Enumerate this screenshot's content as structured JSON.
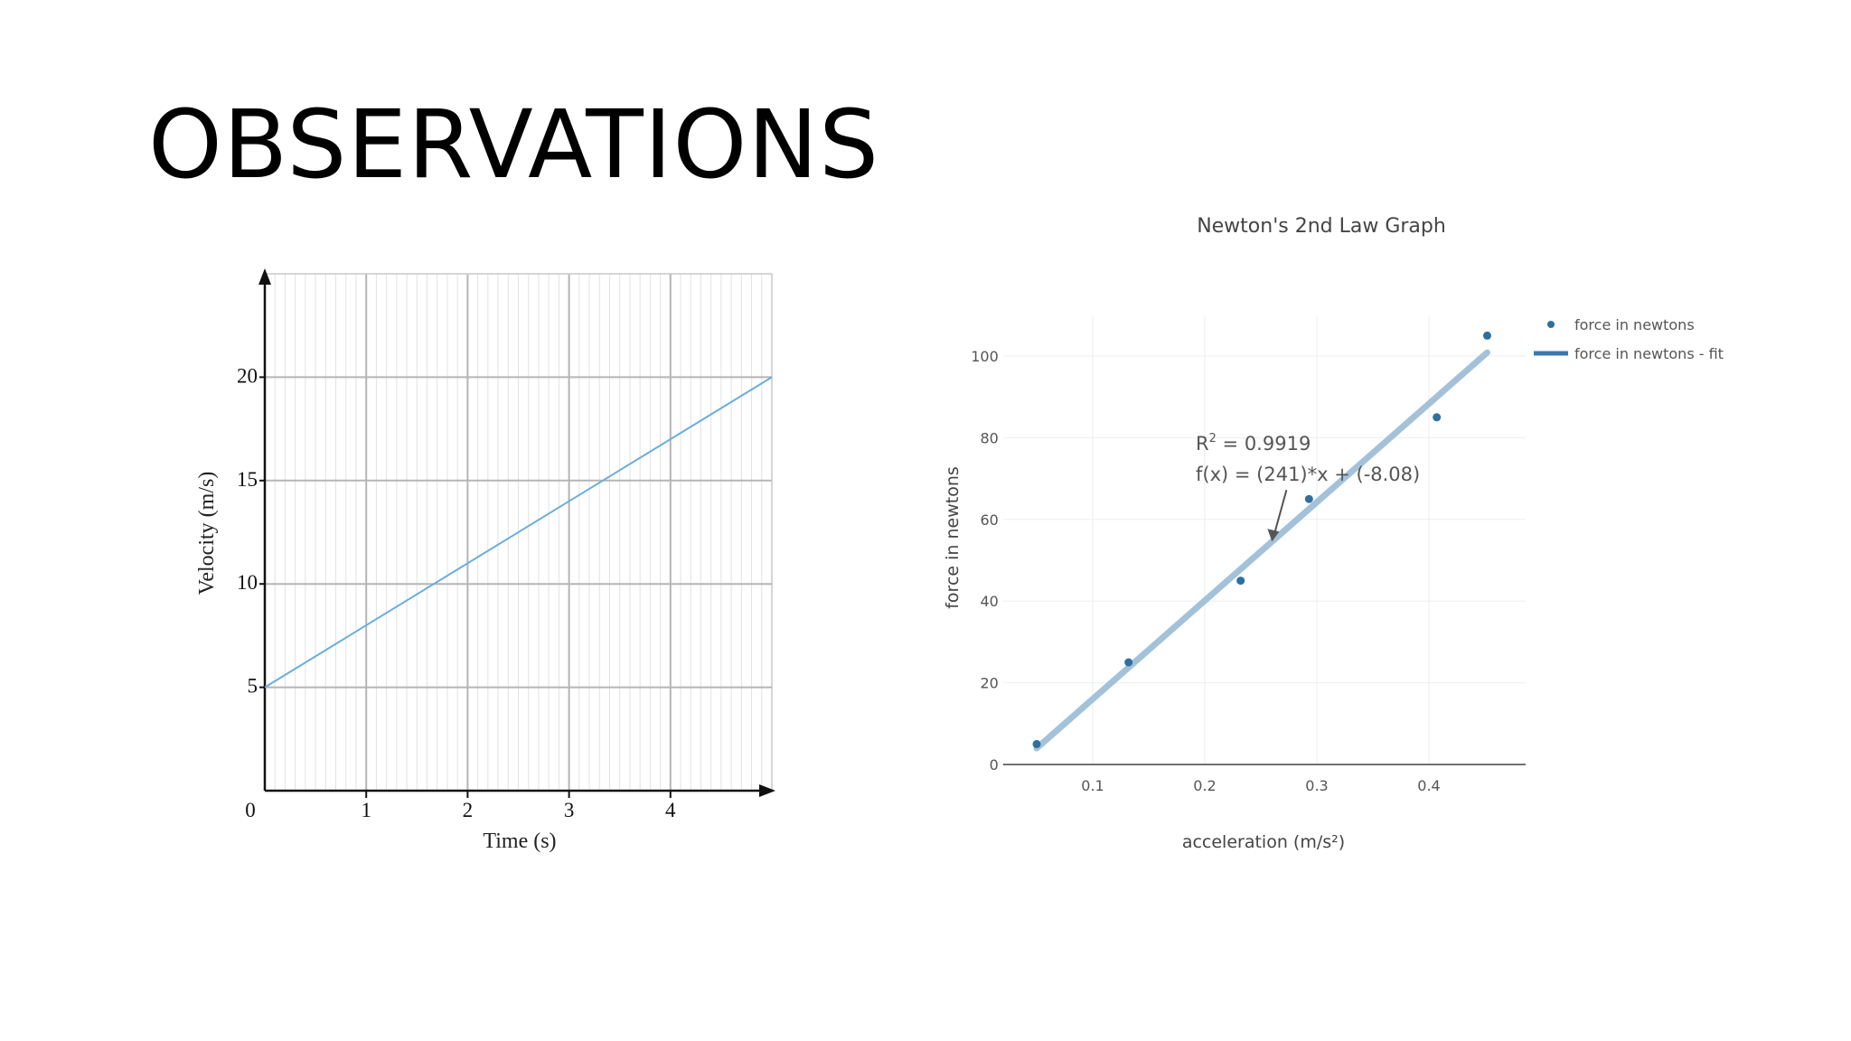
{
  "slide": {
    "title": "OBSERVATIONS"
  },
  "chart_data": [
    {
      "type": "line",
      "title": "",
      "xlabel": "Time (s)",
      "ylabel": "Velocity (m/s)",
      "xlim": [
        0,
        5
      ],
      "ylim": [
        0,
        25
      ],
      "x_ticks": [
        "0",
        "1",
        "2",
        "3",
        "4"
      ],
      "y_ticks": [
        "5",
        "10",
        "15",
        "20"
      ],
      "grid": true,
      "series": [
        {
          "x": [
            0,
            5
          ],
          "y": [
            5,
            20
          ],
          "color": "#6aaedc"
        }
      ]
    },
    {
      "type": "scatter",
      "title": "Newton's 2nd Law Graph",
      "xlabel": "acceleration (m/s²)",
      "ylabel": "force in newtons",
      "xlim": [
        0.02,
        0.5
      ],
      "ylim": [
        0,
        110
      ],
      "x_ticks": [
        "0.1",
        "0.2",
        "0.3",
        "0.4"
      ],
      "y_ticks": [
        "0",
        "20",
        "40",
        "60",
        "80",
        "100"
      ],
      "grid": true,
      "legend_position": "top-right",
      "legend": [
        "force in newtons",
        "force in newtons - fit"
      ],
      "series": [
        {
          "name": "force in newtons",
          "x": [
            0.05,
            0.132,
            0.232,
            0.293,
            0.407,
            0.452
          ],
          "y": [
            5,
            25,
            45,
            65,
            85,
            105
          ],
          "color": "#2f6f9f"
        },
        {
          "name": "force in newtons - fit",
          "fit": {
            "slope": 241,
            "intercept": -8.08
          },
          "x": [
            0.05,
            0.452
          ],
          "color": "#a3c2da"
        }
      ],
      "annotation": {
        "r2_label": "R",
        "r2_sup": "2",
        "r2_value": " = 0.9919",
        "equation": "f(x) = (241)*x + (-8.08)",
        "arrow_to_x": 0.26
      }
    }
  ]
}
